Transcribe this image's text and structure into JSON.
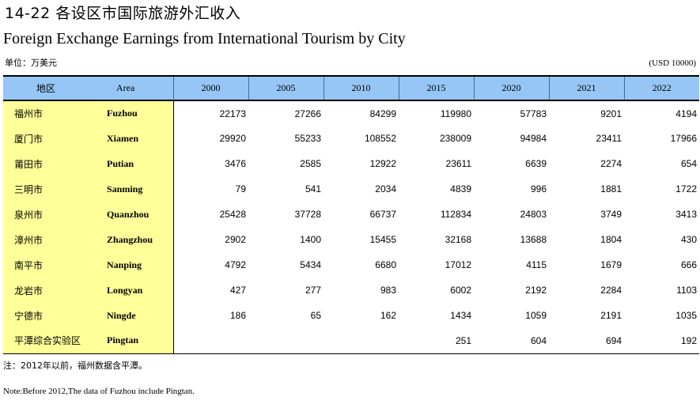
{
  "title_cn": "14-22 各设区市国际旅游外汇收入",
  "title_en": "Foreign Exchange Earnings from International Tourism by City",
  "unit_cn": "单位：万美元",
  "unit_en": "(USD 10000)",
  "header": {
    "area_cn": "地区",
    "area_en": "Area",
    "years": [
      "2000",
      "2005",
      "2010",
      "2015",
      "2020",
      "2021",
      "2022"
    ]
  },
  "rows": [
    {
      "cn": "福州市",
      "en": "Fuzhou",
      "values": [
        "22173",
        "27266",
        "84299",
        "119980",
        "57783",
        "9201",
        "4194"
      ]
    },
    {
      "cn": "厦门市",
      "en": "Xiamen",
      "values": [
        "29920",
        "55233",
        "108552",
        "238009",
        "94984",
        "23411",
        "17966"
      ]
    },
    {
      "cn": "莆田市",
      "en": "Putian",
      "values": [
        "3476",
        "2585",
        "12922",
        "23611",
        "6639",
        "2274",
        "654"
      ]
    },
    {
      "cn": "三明市",
      "en": "Sanming",
      "values": [
        "79",
        "541",
        "2034",
        "4839",
        "996",
        "1881",
        "1722"
      ]
    },
    {
      "cn": "泉州市",
      "en": "Quanzhou",
      "values": [
        "25428",
        "37728",
        "66737",
        "112834",
        "24803",
        "3749",
        "3413"
      ]
    },
    {
      "cn": "漳州市",
      "en": "Zhangzhou",
      "values": [
        "2902",
        "1400",
        "15455",
        "32168",
        "13688",
        "1804",
        "430"
      ]
    },
    {
      "cn": "南平市",
      "en": "Nanping",
      "values": [
        "4792",
        "5434",
        "6680",
        "17012",
        "4115",
        "1679",
        "666"
      ]
    },
    {
      "cn": "龙岩市",
      "en": "Longyan",
      "values": [
        "427",
        "277",
        "983",
        "6002",
        "2192",
        "2284",
        "1103"
      ]
    },
    {
      "cn": "宁德市",
      "en": "Ningde",
      "values": [
        "186",
        "65",
        "162",
        "1434",
        "1059",
        "2191",
        "1035"
      ]
    },
    {
      "cn": "平潭综合实验区",
      "en": "Pingtan",
      "values": [
        "",
        "",
        "",
        "251",
        "604",
        "694",
        "192"
      ]
    }
  ],
  "note_cn": "注：2012年以前，福州数据含平潭。",
  "note_en": "Note:Before 2012,The data of Fuzhou include Pingtan."
}
